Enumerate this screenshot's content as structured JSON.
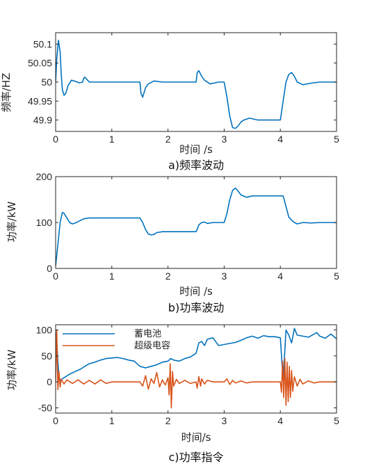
{
  "colors": {
    "series_blue": "#0072BD",
    "series_orange": "#D95319",
    "axis": "#262626"
  },
  "chart_data": [
    {
      "type": "line",
      "caption": "a)频率波动",
      "xlabel": "时间 /s",
      "ylabel": "频率/HZ",
      "xlim": [
        0,
        5
      ],
      "ylim": [
        49.87,
        50.13
      ],
      "xticks": [
        "0",
        "1",
        "2",
        "3",
        "4",
        "5"
      ],
      "yticks": [
        "49.9",
        "49.95",
        "50",
        "50.05",
        "50.1"
      ],
      "series": [
        {
          "color": "#0072BD",
          "x": [
            0,
            0.02,
            0.05,
            0.08,
            0.1,
            0.12,
            0.15,
            0.18,
            0.22,
            0.28,
            0.35,
            0.42,
            0.48,
            0.5,
            0.52,
            0.55,
            0.6,
            0.7,
            0.9,
            1.2,
            1.5,
            1.52,
            1.55,
            1.6,
            1.65,
            1.75,
            1.9,
            2.2,
            2.5,
            2.52,
            2.55,
            2.6,
            2.65,
            2.75,
            2.9,
            3.0,
            3.05,
            3.1,
            3.15,
            3.2,
            3.25,
            3.3,
            3.35,
            3.45,
            3.6,
            3.9,
            4.0,
            4.05,
            4.1,
            4.15,
            4.2,
            4.25,
            4.3,
            4.4,
            4.55,
            4.7,
            5.0
          ],
          "y": [
            50.0,
            50.06,
            50.11,
            50.08,
            50.02,
            49.98,
            49.965,
            49.97,
            49.99,
            50.005,
            50.002,
            49.998,
            50.0,
            50.01,
            50.013,
            50.008,
            50.0,
            50.0,
            50.0,
            50.0,
            50.0,
            49.97,
            49.96,
            49.985,
            49.995,
            50.003,
            50.0,
            50.0,
            50.0,
            50.025,
            50.03,
            50.015,
            50.005,
            49.995,
            50.0,
            50.0,
            49.96,
            49.91,
            49.88,
            49.878,
            49.885,
            49.895,
            49.9,
            49.905,
            49.9,
            49.9,
            49.9,
            49.95,
            50.0,
            50.02,
            50.025,
            50.015,
            50.0,
            49.993,
            49.997,
            50.0,
            50.0
          ]
        }
      ]
    },
    {
      "type": "line",
      "caption": "b)功率波动",
      "xlabel": "时间 /s",
      "ylabel": "功率/kW",
      "xlim": [
        0,
        5
      ],
      "ylim": [
        0,
        200
      ],
      "xticks": [
        "0",
        "1",
        "2",
        "3",
        "4",
        "5"
      ],
      "yticks": [
        "0",
        "100",
        "200"
      ],
      "series": [
        {
          "color": "#0072BD",
          "x": [
            0,
            0.03,
            0.08,
            0.12,
            0.15,
            0.2,
            0.25,
            0.3,
            0.35,
            0.4,
            0.5,
            0.6,
            0.8,
            1.0,
            1.3,
            1.5,
            1.55,
            1.6,
            1.65,
            1.7,
            1.75,
            1.8,
            1.9,
            2.0,
            2.2,
            2.5,
            2.52,
            2.55,
            2.6,
            2.65,
            2.7,
            2.8,
            3.0,
            3.05,
            3.1,
            3.15,
            3.2,
            3.25,
            3.3,
            3.4,
            3.5,
            4.0,
            4.05,
            4.1,
            4.15,
            4.2,
            4.25,
            4.3,
            4.4,
            4.55,
            4.7,
            5.0
          ],
          "y": [
            5,
            40,
            100,
            122,
            120,
            110,
            100,
            97,
            99,
            102,
            108,
            110,
            110,
            110,
            110,
            110,
            100,
            85,
            75,
            73,
            74,
            78,
            80,
            80,
            80,
            80,
            85,
            95,
            100,
            101,
            98,
            100,
            100,
            120,
            150,
            170,
            175,
            168,
            160,
            155,
            158,
            158,
            158,
            135,
            112,
            105,
            100,
            97,
            100,
            99,
            100,
            100
          ]
        }
      ]
    },
    {
      "type": "line",
      "caption": "c)功率指令",
      "xlabel": "时间/s",
      "ylabel": "功率/kW",
      "xlim": [
        0,
        5
      ],
      "ylim": [
        -60,
        110
      ],
      "xticks": [
        "0",
        "1",
        "2",
        "3",
        "4",
        "5"
      ],
      "yticks": [
        "-50",
        "0",
        "50",
        "100"
      ],
      "legend": {
        "position": "top-left"
      },
      "series": [
        {
          "name": "蓄电池",
          "color": "#0072BD",
          "x": [
            0,
            0.02,
            0.04,
            0.06,
            0.08,
            0.1,
            0.15,
            0.25,
            0.35,
            0.45,
            0.55,
            0.6,
            0.7,
            0.8,
            0.9,
            1.0,
            1.1,
            1.2,
            1.3,
            1.4,
            1.5,
            1.6,
            1.7,
            1.8,
            1.9,
            2.0,
            2.05,
            2.1,
            2.2,
            2.3,
            2.4,
            2.5,
            2.55,
            2.6,
            2.65,
            2.7,
            2.8,
            2.9,
            3.0,
            3.1,
            3.2,
            3.3,
            3.4,
            3.5,
            3.6,
            3.7,
            3.8,
            3.9,
            4.0,
            4.05,
            4.1,
            4.15,
            4.2,
            4.25,
            4.3,
            4.4,
            4.5,
            4.6,
            4.65,
            4.7,
            4.8,
            4.9,
            5.0
          ],
          "y": [
            95,
            80,
            40,
            10,
            3,
            5,
            8,
            15,
            20,
            25,
            32,
            35,
            38,
            42,
            45,
            46,
            47,
            45,
            42,
            40,
            30,
            27,
            30,
            33,
            38,
            40,
            45,
            42,
            40,
            45,
            48,
            55,
            75,
            78,
            70,
            82,
            85,
            70,
            72,
            74,
            76,
            80,
            85,
            88,
            84,
            89,
            87,
            87,
            85,
            2,
            100,
            90,
            75,
            103,
            90,
            88,
            86,
            92,
            95,
            88,
            84,
            92,
            83
          ]
        },
        {
          "name": "超级电容",
          "color": "#D95319",
          "x": [
            0,
            0.02,
            0.04,
            0.06,
            0.08,
            0.1,
            0.15,
            0.2,
            0.3,
            0.4,
            0.5,
            0.6,
            0.7,
            0.8,
            0.9,
            1.0,
            1.02,
            1.5,
            1.55,
            1.6,
            1.65,
            1.7,
            1.75,
            1.8,
            1.85,
            1.9,
            1.95,
            2.0,
            2.02,
            2.04,
            2.06,
            2.08,
            2.1,
            2.15,
            2.2,
            2.3,
            2.4,
            2.5,
            2.52,
            2.55,
            2.58,
            2.6,
            2.65,
            2.7,
            2.8,
            3.0,
            3.05,
            3.1,
            3.15,
            3.2,
            3.3,
            3.4,
            3.5,
            3.8,
            4.0,
            4.02,
            4.04,
            4.06,
            4.08,
            4.1,
            4.12,
            4.14,
            4.16,
            4.18,
            4.2,
            4.22,
            4.25,
            4.3,
            4.35,
            4.4,
            4.5,
            4.6,
            4.7,
            4.8,
            5.0
          ],
          "y": [
            0,
            100,
            -15,
            20,
            -10,
            5,
            -4,
            4,
            -3,
            4,
            -4,
            3,
            -4,
            4,
            -3,
            0,
            0,
            0,
            -8,
            12,
            -14,
            6,
            -3,
            18,
            -10,
            4,
            -6,
            8,
            -25,
            35,
            -50,
            20,
            -8,
            5,
            -3,
            3,
            -3,
            0,
            -12,
            10,
            -8,
            6,
            -4,
            3,
            0,
            0,
            6,
            -5,
            3,
            -2,
            2,
            -2,
            0,
            0,
            0,
            -20,
            40,
            -30,
            45,
            -45,
            38,
            -38,
            30,
            -30,
            22,
            -18,
            10,
            -8,
            5,
            -4,
            2,
            -2,
            0,
            0,
            0
          ]
        }
      ]
    }
  ]
}
